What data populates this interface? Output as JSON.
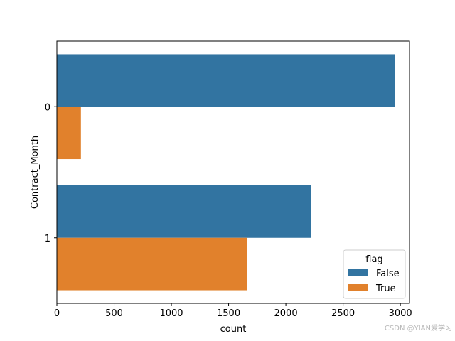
{
  "chart_data": {
    "type": "bar",
    "orientation": "horizontal",
    "categories": [
      "0",
      "1"
    ],
    "series": [
      {
        "name": "False",
        "values": [
          2950,
          2220
        ],
        "color": "#3274a1"
      },
      {
        "name": "True",
        "values": [
          210,
          1660
        ],
        "color": "#e1812c"
      }
    ],
    "xlabel": "count",
    "ylabel": "Contract_Month",
    "xlim": [
      0,
      3080
    ],
    "xticks": [
      0,
      500,
      1000,
      1500,
      2000,
      2500,
      3000
    ],
    "grid": false,
    "legend": {
      "title": "flag",
      "placement": "lower-right"
    }
  },
  "watermark": "CSDN @YIAN爱学习"
}
